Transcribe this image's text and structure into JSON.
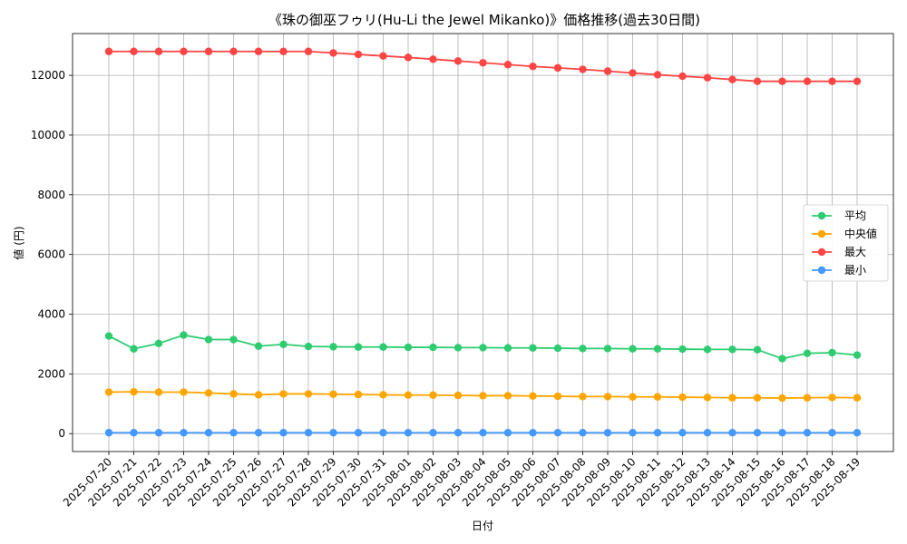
{
  "chart_data": {
    "type": "line",
    "title": "《珠の御巫フゥリ(Hu-Li the Jewel Mikanko)》価格推移(過去30日間)",
    "xlabel": "日付",
    "ylabel": "値 (円)",
    "ylim": [
      -600,
      13400
    ],
    "yticks": [
      0,
      2000,
      4000,
      6000,
      8000,
      10000,
      12000
    ],
    "grid": true,
    "legend_position": "center-right",
    "categories": [
      "2025-07-20",
      "2025-07-21",
      "2025-07-22",
      "2025-07-23",
      "2025-07-24",
      "2025-07-25",
      "2025-07-26",
      "2025-07-27",
      "2025-07-28",
      "2025-07-29",
      "2025-07-30",
      "2025-07-31",
      "2025-08-01",
      "2025-08-02",
      "2025-08-03",
      "2025-08-04",
      "2025-08-05",
      "2025-08-06",
      "2025-08-07",
      "2025-08-08",
      "2025-08-09",
      "2025-08-10",
      "2025-08-11",
      "2025-08-12",
      "2025-08-13",
      "2025-08-14",
      "2025-08-15",
      "2025-08-16",
      "2025-08-17",
      "2025-08-18",
      "2025-08-19"
    ],
    "series": [
      {
        "name": "平均",
        "color": "#2ecc71",
        "values": [
          3270,
          2840,
          3020,
          3300,
          3150,
          3150,
          2930,
          2990,
          2920,
          2910,
          2900,
          2900,
          2890,
          2890,
          2880,
          2880,
          2870,
          2870,
          2860,
          2850,
          2850,
          2840,
          2840,
          2830,
          2820,
          2820,
          2810,
          2510,
          2690,
          2710,
          2630
        ]
      },
      {
        "name": "中央値",
        "color": "#ffa500",
        "values": [
          1390,
          1400,
          1390,
          1390,
          1360,
          1330,
          1300,
          1330,
          1330,
          1320,
          1310,
          1300,
          1290,
          1290,
          1280,
          1270,
          1270,
          1260,
          1250,
          1240,
          1240,
          1230,
          1230,
          1220,
          1210,
          1200,
          1200,
          1190,
          1200,
          1210,
          1200
        ]
      },
      {
        "name": "最大",
        "color": "#ff4444",
        "values": [
          12800,
          12800,
          12800,
          12800,
          12800,
          12800,
          12800,
          12800,
          12800,
          12750,
          12700,
          12650,
          12600,
          12540,
          12480,
          12420,
          12360,
          12300,
          12250,
          12200,
          12140,
          12080,
          12020,
          11970,
          11920,
          11860,
          11800,
          11800,
          11800,
          11800,
          11800
        ]
      },
      {
        "name": "最小",
        "color": "#4499ff",
        "values": [
          30,
          30,
          30,
          30,
          30,
          30,
          30,
          30,
          30,
          30,
          30,
          30,
          30,
          30,
          30,
          30,
          30,
          30,
          30,
          30,
          30,
          30,
          30,
          30,
          30,
          30,
          30,
          30,
          30,
          30,
          30
        ]
      }
    ]
  }
}
